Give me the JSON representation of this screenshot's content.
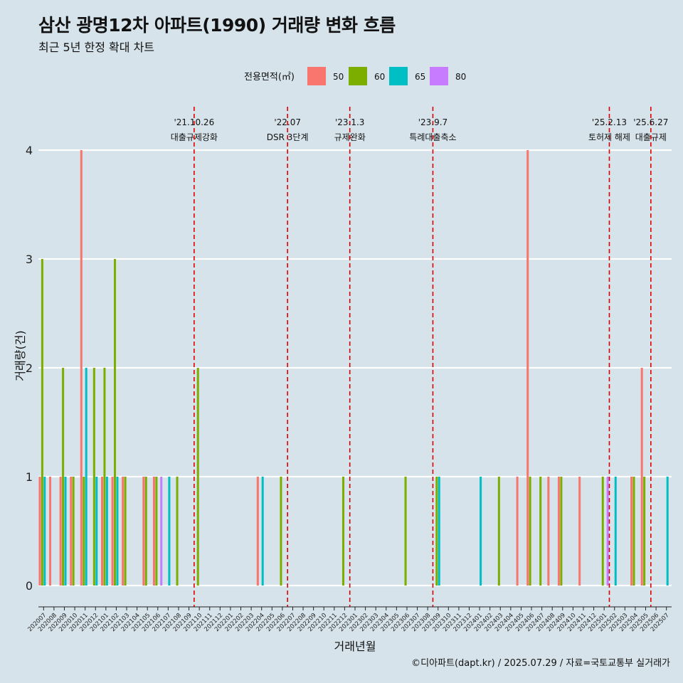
{
  "title": "삼산 광명12차 아파트(1990) 거래량 변화 흐름",
  "subtitle": "최근 5년 한정 확대 차트",
  "caption": "©디아파트(dapt.kr) / 2025.07.29 / 자료=국토교통부 실거래가",
  "chart_data": {
    "type": "bar",
    "xlabel": "거래년월",
    "ylabel": "거래량(건)",
    "ylim": [
      0,
      4
    ],
    "yticks": [
      0,
      1,
      2,
      3,
      4
    ],
    "legend": {
      "title": "전용면적(㎡)",
      "position": "top",
      "entries": [
        {
          "label": "50",
          "color": "#F8766D"
        },
        {
          "label": "60",
          "color": "#7CAE00"
        },
        {
          "label": "65",
          "color": "#00BFC4"
        },
        {
          "label": "80",
          "color": "#C77CFF"
        }
      ]
    },
    "categories": [
      "202007",
      "202008",
      "202009",
      "202010",
      "202011",
      "202012",
      "202101",
      "202102",
      "202103",
      "202104",
      "202105",
      "202106",
      "202107",
      "202108",
      "202109",
      "202110",
      "202111",
      "202112",
      "202201",
      "202202",
      "202203",
      "202204",
      "202205",
      "202206",
      "202207",
      "202208",
      "202209",
      "202210",
      "202211",
      "202212",
      "202301",
      "202302",
      "202303",
      "202304",
      "202305",
      "202306",
      "202307",
      "202308",
      "202309",
      "202310",
      "202311",
      "202312",
      "202401",
      "202402",
      "202403",
      "202404",
      "202405",
      "202406",
      "202407",
      "202408",
      "202409",
      "202410",
      "202411",
      "202412",
      "202501",
      "202502",
      "202503",
      "202504",
      "202505",
      "202506",
      "202507"
    ],
    "series": [
      {
        "name": "50",
        "values": [
          1,
          1,
          1,
          1,
          4,
          0,
          1,
          1,
          1,
          0,
          1,
          1,
          0,
          0,
          0,
          0,
          0,
          0,
          0,
          0,
          0,
          1,
          0,
          0,
          0,
          0,
          0,
          0,
          0,
          0,
          0,
          0,
          0,
          0,
          0,
          0,
          0,
          0,
          0,
          0,
          0,
          0,
          0,
          0,
          0,
          0,
          1,
          4,
          0,
          1,
          1,
          0,
          1,
          0,
          0,
          0,
          0,
          1,
          2,
          0,
          0
        ]
      },
      {
        "name": "60",
        "values": [
          3,
          0,
          2,
          1,
          1,
          2,
          2,
          3,
          1,
          0,
          1,
          1,
          0,
          1,
          0,
          2,
          0,
          0,
          0,
          0,
          0,
          0,
          0,
          1,
          0,
          0,
          0,
          0,
          0,
          1,
          0,
          0,
          0,
          0,
          0,
          1,
          0,
          0,
          1,
          0,
          0,
          0,
          0,
          0,
          1,
          0,
          0,
          1,
          1,
          0,
          1,
          0,
          0,
          0,
          1,
          0,
          0,
          1,
          1,
          0,
          0
        ]
      },
      {
        "name": "65",
        "values": [
          1,
          0,
          1,
          0,
          2,
          1,
          1,
          1,
          0,
          0,
          0,
          0,
          1,
          0,
          0,
          0,
          0,
          0,
          0,
          0,
          0,
          1,
          0,
          0,
          0,
          0,
          0,
          0,
          0,
          0,
          0,
          0,
          0,
          0,
          0,
          0,
          0,
          0,
          1,
          0,
          0,
          0,
          1,
          0,
          0,
          0,
          0,
          0,
          0,
          0,
          0,
          0,
          0,
          0,
          0,
          1,
          0,
          0,
          0,
          0,
          1
        ]
      },
      {
        "name": "80",
        "values": [
          0,
          0,
          0,
          0,
          0,
          0,
          0,
          0,
          0,
          0,
          0,
          1,
          0,
          0,
          0,
          0,
          0,
          0,
          0,
          0,
          0,
          0,
          0,
          0,
          0,
          0,
          0,
          0,
          0,
          0,
          0,
          0,
          0,
          0,
          0,
          0,
          0,
          0,
          0,
          0,
          0,
          0,
          0,
          0,
          0,
          0,
          0,
          0,
          0,
          0,
          0,
          0,
          0,
          0,
          1,
          0,
          0,
          0,
          0,
          0,
          0
        ]
      }
    ],
    "annotations": [
      {
        "x": "202110",
        "date": "'21.10.26",
        "label": "대출규제강화",
        "color": "#e00000"
      },
      {
        "x": "202207",
        "date": "'22.07",
        "label": "DSR 3단계",
        "color": "#e00000"
      },
      {
        "x": "202301",
        "date": "'23.1.3",
        "label": "규제완화",
        "color": "#e00000"
      },
      {
        "x": "202309",
        "date": "'23.9.7",
        "label": "특례대출축소",
        "color": "#e00000"
      },
      {
        "x": "202502",
        "date": "'25.2.13",
        "label": "토허제 해제",
        "color": "#e00000"
      },
      {
        "x": "202506",
        "date": "'25.6.27",
        "label": "대출규제",
        "color": "#e00000"
      }
    ],
    "grid": {
      "horizontal": true,
      "vertical": false
    }
  }
}
